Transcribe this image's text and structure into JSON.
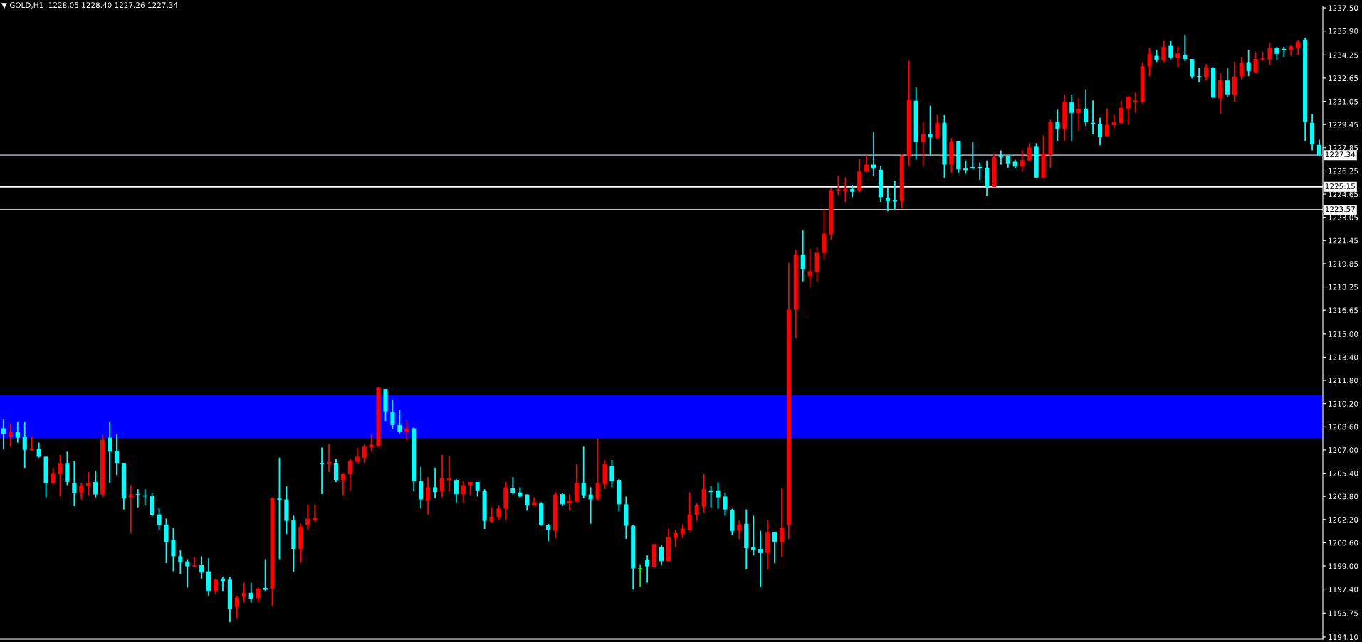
{
  "chart_data": {
    "type": "candlestick",
    "title": "▼ GOLD,H1  1228.05 1228.40 1227.26 1227.34",
    "categories": [
      null,
      null,
      null,
      null,
      null,
      null,
      null,
      null,
      null,
      null,
      null,
      null,
      null,
      null,
      null,
      null,
      null,
      null,
      null,
      null,
      null,
      null,
      null,
      null,
      null,
      null,
      null,
      null,
      null,
      null,
      null,
      null,
      null,
      null,
      null,
      null,
      null,
      null,
      null,
      null,
      null,
      null,
      null,
      null,
      null,
      null,
      null,
      null,
      null,
      null,
      null,
      null,
      null,
      null,
      null,
      null,
      null,
      null,
      null,
      null,
      null,
      null,
      null,
      null,
      null,
      null,
      null,
      null,
      null,
      null,
      null,
      null,
      null,
      null,
      null,
      null,
      null,
      null,
      null,
      null,
      null,
      null,
      null,
      null,
      null,
      null,
      null,
      null,
      null,
      null,
      null,
      null,
      null,
      null,
      null,
      null,
      null,
      null,
      null,
      null,
      null,
      null,
      null,
      null,
      null,
      null,
      null,
      null,
      null,
      null,
      null,
      null,
      null,
      null,
      null,
      null,
      null,
      null,
      null,
      null,
      null,
      null,
      null,
      null,
      null,
      null,
      null,
      null,
      null,
      null,
      null,
      null,
      null,
      null,
      null,
      null,
      null,
      null,
      null,
      null,
      null,
      null,
      null,
      null,
      null,
      null,
      null,
      null,
      null,
      null,
      null,
      null,
      null,
      null,
      null,
      null,
      null,
      null,
      null,
      null,
      null,
      null,
      null,
      null,
      null,
      null,
      null,
      null,
      null,
      null,
      null,
      null,
      null,
      null,
      null,
      null,
      null,
      null,
      null,
      null,
      null,
      null,
      null,
      null,
      null,
      null,
      null
    ],
    "ohlc": [
      [
        1208.49,
        1209.11,
        1207.03,
        1208.13
      ],
      [
        1207.93,
        1208.83,
        1207.23,
        1208.27
      ],
      [
        1208.27,
        1208.91,
        1207.51,
        1207.85
      ],
      [
        1207.93,
        1208.91,
        1205.77,
        1207.01
      ],
      [
        1206.98,
        1207.93,
        1206.95,
        1207.09
      ],
      [
        1207.09,
        1207.51,
        1206.47,
        1206.53
      ],
      [
        1206.53,
        1206.59,
        1203.73,
        1204.71
      ],
      [
        1204.71,
        1205.77,
        1204.63,
        1205.41
      ],
      [
        1205.35,
        1206.67,
        1203.81,
        1206.11
      ],
      [
        1206.11,
        1206.89,
        1204.57,
        1204.79
      ],
      [
        1204.71,
        1206.25,
        1203.11,
        1204.01
      ],
      [
        1204.07,
        1204.71,
        1203.59,
        1204.51
      ],
      [
        1204.51,
        1205.47,
        1203.87,
        1204.71
      ],
      [
        1204.79,
        1205.55,
        1203.73,
        1203.93
      ],
      [
        1203.93,
        1208.07,
        1203.73,
        1207.71
      ],
      [
        1207.85,
        1208.91,
        1204.71,
        1206.89
      ],
      [
        1206.95,
        1208.07,
        1205.27,
        1206.11
      ],
      [
        1206.11,
        1206.11,
        1202.89,
        1203.65
      ],
      [
        1203.73,
        1204.57,
        1201.29,
        1203.93
      ],
      [
        1203.95,
        1204.29,
        1203.03,
        1203.9
      ],
      [
        1203.87,
        1204.29,
        1203.17,
        1203.79
      ],
      [
        1203.81,
        1204.01,
        1202.41,
        1202.53
      ],
      [
        1202.55,
        1202.97,
        1201.49,
        1201.83
      ],
      [
        1201.85,
        1202.27,
        1199.19,
        1200.65
      ],
      [
        1200.79,
        1201.63,
        1198.63,
        1199.67
      ],
      [
        1199.67,
        1200.09,
        1198.41,
        1199.25
      ],
      [
        1199.31,
        1199.47,
        1197.51,
        1198.97
      ],
      [
        1198.97,
        1199.59,
        1198.91,
        1199.05
      ],
      [
        1199.05,
        1199.67,
        1198.13,
        1198.55
      ],
      [
        1198.63,
        1199.53,
        1196.95,
        1197.29
      ],
      [
        1197.29,
        1198.13,
        1197.07,
        1198.05
      ],
      [
        1198.13,
        1198.27,
        1197.29,
        1197.96
      ],
      [
        1198.05,
        1198.27,
        1195.13,
        1196.03
      ],
      [
        1196.17,
        1196.93,
        1195.41,
        1196.81
      ],
      [
        1196.87,
        1197.85,
        1196.51,
        1197.15
      ],
      [
        1197.15,
        1197.85,
        1196.45,
        1196.73
      ],
      [
        1196.79,
        1197.51,
        1196.51,
        1197.43
      ],
      [
        1197.49,
        1199.47,
        1197.29,
        1197.35
      ],
      [
        1197.43,
        1203.73,
        1196.23,
        1203.67
      ],
      [
        1203.65,
        1206.47,
        1199.47,
        1203.56
      ],
      [
        1203.59,
        1204.49,
        1201.21,
        1202.11
      ],
      [
        1202.19,
        1202.47,
        1198.61,
        1200.17
      ],
      [
        1200.17,
        1201.91,
        1199.25,
        1201.71
      ],
      [
        1201.83,
        1203.23,
        1201.49,
        1202.27
      ],
      [
        1202.16,
        1203.23,
        1202.05,
        1202.33
      ],
      [
        1206.11,
        1207.17,
        1203.95,
        1206.03
      ],
      [
        1206.03,
        1207.43,
        1205.47,
        1206.17
      ],
      [
        1206.11,
        1206.39,
        1204.79,
        1204.93
      ],
      [
        1204.93,
        1205.41,
        1203.87,
        1205.35
      ],
      [
        1205.35,
        1206.39,
        1204.23,
        1206.25
      ],
      [
        1206.19,
        1207.15,
        1206.11,
        1206.53
      ],
      [
        1206.45,
        1207.37,
        1206.11,
        1207.23
      ],
      [
        1207.17,
        1208.07,
        1206.89,
        1207.37
      ],
      [
        1207.29,
        1211.37,
        1207.17,
        1211.29
      ],
      [
        1211.21,
        1211.21,
        1208.99,
        1209.67
      ],
      [
        1209.61,
        1210.45,
        1208.43,
        1208.71
      ],
      [
        1208.71,
        1209.75,
        1208.15,
        1208.27
      ],
      [
        1208.27,
        1209.05,
        1207.65,
        1208.49
      ],
      [
        1208.49,
        1208.55,
        1204.15,
        1204.85
      ],
      [
        1204.85,
        1205.83,
        1202.97,
        1203.59
      ],
      [
        1203.53,
        1205.13,
        1202.55,
        1204.43
      ],
      [
        1204.43,
        1205.77,
        1203.67,
        1204.09
      ],
      [
        1204.15,
        1206.67,
        1203.73,
        1205.05
      ],
      [
        1204.93,
        1206.59,
        1204.15,
        1205.05
      ],
      [
        1204.93,
        1204.99,
        1203.39,
        1203.95
      ],
      [
        1203.95,
        1204.85,
        1203.39,
        1204.57
      ],
      [
        1204.57,
        1204.79,
        1203.87,
        1204.79
      ],
      [
        1204.79,
        1204.79,
        1203.79,
        1204.21
      ],
      [
        1204.15,
        1204.29,
        1201.55,
        1202.11
      ],
      [
        1202.05,
        1203.03,
        1201.97,
        1202.39
      ],
      [
        1202.39,
        1203.17,
        1202.19,
        1202.95
      ],
      [
        1202.95,
        1204.79,
        1202.19,
        1204.43
      ],
      [
        1204.35,
        1205.13,
        1203.95,
        1204.01
      ],
      [
        1204.07,
        1204.43,
        1203.73,
        1203.79
      ],
      [
        1203.93,
        1203.93,
        1202.81,
        1203.17
      ],
      [
        1203.17,
        1203.73,
        1203.17,
        1203.39
      ],
      [
        1203.31,
        1203.39,
        1201.77,
        1201.83
      ],
      [
        1201.83,
        1201.91,
        1200.71,
        1201.49
      ],
      [
        1201.43,
        1204.09,
        1200.93,
        1203.93
      ],
      [
        1203.95,
        1204.01,
        1203.11,
        1203.25
      ],
      [
        1203.31,
        1203.93,
        1202.81,
        1203.51
      ],
      [
        1203.45,
        1206.05,
        1203.39,
        1204.71
      ],
      [
        1204.71,
        1207.23,
        1203.67,
        1203.87
      ],
      [
        1203.93,
        1204.43,
        1201.91,
        1203.59
      ],
      [
        1203.59,
        1207.79,
        1203.53,
        1204.71
      ],
      [
        1204.65,
        1206.31,
        1204.29,
        1206.03
      ],
      [
        1205.89,
        1206.31,
        1204.43,
        1204.85
      ],
      [
        1204.93,
        1204.99,
        1202.75,
        1203.25
      ],
      [
        1203.25,
        1203.79,
        1200.87,
        1201.77
      ],
      [
        1201.77,
        1201.83,
        1197.37,
        1198.83
      ],
      [
        1198.8,
        1199.11,
        1197.57,
        1198.8
      ],
      [
        1199.45,
        1199.73,
        1197.85,
        1198.97
      ],
      [
        1198.91,
        1200.51,
        1198.91,
        1200.51
      ],
      [
        1200.31,
        1200.45,
        1199.05,
        1199.33
      ],
      [
        1199.33,
        1201.55,
        1199.33,
        1200.99
      ],
      [
        1200.93,
        1201.49,
        1200.31,
        1201.27
      ],
      [
        1201.21,
        1201.85,
        1200.93,
        1201.57
      ],
      [
        1201.49,
        1204.07,
        1201.43,
        1202.53
      ],
      [
        1202.53,
        1203.31,
        1202.11,
        1203.17
      ],
      [
        1203.09,
        1205.35,
        1202.69,
        1204.29
      ],
      [
        1204.21,
        1204.51,
        1203.03,
        1204.09
      ],
      [
        1204.21,
        1204.77,
        1202.95,
        1203.73
      ],
      [
        1203.79,
        1204.07,
        1202.47,
        1202.89
      ],
      [
        1202.83,
        1202.95,
        1201.15,
        1201.41
      ],
      [
        1201.43,
        1202.13,
        1200.85,
        1201.85
      ],
      [
        1201.91,
        1202.89,
        1198.77,
        1200.23
      ],
      [
        1200.29,
        1202.47,
        1199.73,
        1200.09
      ],
      [
        1200.17,
        1201.43,
        1197.57,
        1199.89
      ],
      [
        1199.89,
        1202.19,
        1198.75,
        1201.35
      ],
      [
        1201.35,
        1201.35,
        1199.19,
        1200.65
      ],
      [
        1200.65,
        1204.35,
        1199.59,
        1201.63
      ],
      [
        1201.83,
        1219.89,
        1200.87,
        1216.67
      ],
      [
        1216.67,
        1220.81,
        1214.71,
        1220.47
      ],
      [
        1220.47,
        1222.15,
        1218.63,
        1219.47
      ],
      [
        1218.99,
        1220.87,
        1218.21,
        1219.33
      ],
      [
        1219.3,
        1220.95,
        1218.63,
        1220.61
      ],
      [
        1220.59,
        1223.61,
        1220.17,
        1221.93
      ],
      [
        1221.87,
        1225.07,
        1221.51,
        1224.93
      ],
      [
        1224.9,
        1225.91,
        1224.59,
        1224.98
      ],
      [
        1224.87,
        1225.79,
        1224.11,
        1225.01
      ],
      [
        1225.01,
        1225.29,
        1224.45,
        1224.81
      ],
      [
        1224.87,
        1227.05,
        1224.79,
        1226.21
      ],
      [
        1226.19,
        1227.33,
        1226.19,
        1226.69
      ],
      [
        1226.69,
        1228.93,
        1225.91,
        1226.41
      ],
      [
        1226.33,
        1226.61,
        1224.11,
        1224.45
      ],
      [
        1224.39,
        1225.07,
        1223.47,
        1224.17
      ],
      [
        1224.25,
        1225.57,
        1223.55,
        1224.14
      ],
      [
        1224.17,
        1227.45,
        1223.69,
        1227.25
      ],
      [
        1227.25,
        1233.83,
        1226.61,
        1231.17
      ],
      [
        1231.09,
        1232.01,
        1227.03,
        1228.23
      ],
      [
        1228.23,
        1229.63,
        1226.61,
        1228.79
      ],
      [
        1228.79,
        1230.75,
        1227.33,
        1228.57
      ],
      [
        1228.51,
        1230.11,
        1228.45,
        1229.57
      ],
      [
        1229.57,
        1230.11,
        1225.77,
        1226.69
      ],
      [
        1226.69,
        1228.51,
        1226.13,
        1228.23
      ],
      [
        1228.29,
        1228.31,
        1226.13,
        1226.35
      ],
      [
        1226.41,
        1226.97,
        1226.05,
        1226.3
      ],
      [
        1226.52,
        1228.23,
        1226.41,
        1226.41
      ],
      [
        1226.52,
        1226.83,
        1225.63,
        1226.44
      ],
      [
        1226.47,
        1226.97,
        1224.51,
        1225.15
      ],
      [
        1225.15,
        1227.47,
        1225.15,
        1227.19
      ],
      [
        1227.25,
        1227.67,
        1226.69,
        1227.19
      ],
      [
        1227.31,
        1227.33,
        1226.47,
        1226.77
      ],
      [
        1226.89,
        1227.03,
        1226.41,
        1226.55
      ],
      [
        1226.55,
        1227.67,
        1226.19,
        1227.0
      ],
      [
        1226.97,
        1228.15,
        1226.91,
        1227.87
      ],
      [
        1227.92,
        1228.17,
        1225.77,
        1225.79
      ],
      [
        1225.77,
        1228.71,
        1225.77,
        1227.45
      ],
      [
        1227.36,
        1229.77,
        1226.47,
        1229.63
      ],
      [
        1229.63,
        1230.47,
        1228.31,
        1229.15
      ],
      [
        1229.15,
        1231.51,
        1228.31,
        1231.03
      ],
      [
        1230.97,
        1231.51,
        1228.31,
        1230.25
      ],
      [
        1230.25,
        1231.31,
        1229.01,
        1230.53
      ],
      [
        1230.55,
        1231.87,
        1229.35,
        1229.63
      ],
      [
        1229.57,
        1231.11,
        1228.79,
        1229.49
      ],
      [
        1229.49,
        1229.91,
        1228.03,
        1228.59
      ],
      [
        1228.65,
        1230.55,
        1228.65,
        1229.43
      ],
      [
        1229.41,
        1230.13,
        1229.21,
        1229.63
      ],
      [
        1229.55,
        1231.11,
        1229.55,
        1230.61
      ],
      [
        1230.55,
        1231.39,
        1229.43,
        1231.39
      ],
      [
        1230.97,
        1231.65,
        1230.27,
        1231.11
      ],
      [
        1231.03,
        1233.75,
        1230.89,
        1233.47
      ],
      [
        1233.47,
        1234.75,
        1232.79,
        1234.31
      ],
      [
        1234.19,
        1234.59,
        1233.77,
        1233.91
      ],
      [
        1233.89,
        1235.23,
        1233.77,
        1234.81
      ],
      [
        1234.92,
        1235.23,
        1233.97,
        1234.08
      ],
      [
        1234.05,
        1234.81,
        1233.41,
        1234.36
      ],
      [
        1234.25,
        1235.65,
        1233.83,
        1233.97
      ],
      [
        1233.97,
        1233.97,
        1232.63,
        1232.77
      ],
      [
        1232.79,
        1233.35,
        1232.37,
        1232.71
      ],
      [
        1232.71,
        1233.61,
        1232.51,
        1233.41
      ],
      [
        1233.35,
        1233.41,
        1231.28,
        1231.31
      ],
      [
        1231.25,
        1232.99,
        1230.19,
        1232.51
      ],
      [
        1232.49,
        1233.33,
        1231.37,
        1231.53
      ],
      [
        1231.51,
        1233.77,
        1231.03,
        1232.77
      ],
      [
        1232.77,
        1234.11,
        1232.57,
        1233.69
      ],
      [
        1233.75,
        1234.59,
        1232.79,
        1233.13
      ],
      [
        1233.07,
        1234.45,
        1232.99,
        1233.97
      ],
      [
        1233.94,
        1234.47,
        1233.83,
        1234.03
      ],
      [
        1233.94,
        1235.09,
        1233.55,
        1234.73
      ],
      [
        1234.73,
        1234.81,
        1233.91,
        1234.31
      ],
      [
        1234.67,
        1234.81,
        1234.11,
        1234.59
      ],
      [
        1234.59,
        1234.95,
        1234.19,
        1234.84
      ],
      [
        1234.73,
        1235.29,
        1234.25,
        1235.17
      ],
      [
        1235.31,
        1235.43,
        1228.31,
        1229.63
      ],
      [
        1229.57,
        1230.19,
        1227.67,
        1228.09
      ],
      [
        1228.05,
        1228.4,
        1227.26,
        1227.34
      ]
    ],
    "colors": [
      "#00ffff",
      "#ff0000",
      "#00ffff",
      "#00ffff",
      "#ff0000",
      "#00ffff",
      "#00ffff",
      "#ff0000",
      "#ff0000",
      "#00ffff",
      "#00ffff",
      "#ff0000",
      "#ff0000",
      "#00ffff",
      "#ff0000",
      "#00ffff",
      "#00ffff",
      "#00ffff",
      "#ff0000",
      "#00ffff",
      "#00ffff",
      "#00ffff",
      "#00ffff",
      "#00ffff",
      "#00ffff",
      "#00ffff",
      "#00ffff",
      "#ff0000",
      "#00ffff",
      "#00ffff",
      "#ff0000",
      "#00ffff",
      "#00ffff",
      "#ff0000",
      "#ff0000",
      "#00ffff",
      "#ff0000",
      "#00ffff",
      "#ff0000",
      "#00ffff",
      "#00ffff",
      "#00ffff",
      "#ff0000",
      "#ff0000",
      "#ff0000",
      "#00ffff",
      "#ff0000",
      "#00ffff",
      "#ff0000",
      "#ff0000",
      "#ff0000",
      "#ff0000",
      "#ff0000",
      "#ff0000",
      "#00ffff",
      "#00ffff",
      "#00ffff",
      "#ff0000",
      "#00ffff",
      "#00ffff",
      "#ff0000",
      "#00ffff",
      "#ff0000",
      "#ff0000",
      "#00ffff",
      "#ff0000",
      "#ff0000",
      "#00ffff",
      "#00ffff",
      "#ff0000",
      "#ff0000",
      "#ff0000",
      "#00ffff",
      "#00ffff",
      "#00ffff",
      "#ff0000",
      "#00ffff",
      "#00ffff",
      "#ff0000",
      "#00ffff",
      "#ff0000",
      "#ff0000",
      "#00ffff",
      "#00ffff",
      "#ff0000",
      "#ff0000",
      "#00ffff",
      "#00ffff",
      "#00ffff",
      "#00ffff",
      "#00ff00",
      "#00ffff",
      "#ff0000",
      "#00ffff",
      "#ff0000",
      "#ff0000",
      "#ff0000",
      "#ff0000",
      "#ff0000",
      "#ff0000",
      "#00ffff",
      "#00ffff",
      "#00ffff",
      "#00ffff",
      "#ff0000",
      "#00ffff",
      "#00ffff",
      "#00ffff",
      "#ff0000",
      "#00ffff",
      "#ff0000",
      "#ff0000",
      "#ff0000",
      "#00ffff",
      "#ff0000",
      "#ff0000",
      "#ff0000",
      "#ff0000",
      "#ff0000",
      "#ff0000",
      "#00ffff",
      "#ff0000",
      "#ff0000",
      "#00ffff",
      "#00ffff",
      "#00ffff",
      "#00ffff",
      "#ff0000",
      "#ff0000",
      "#00ffff",
      "#ff0000",
      "#00ffff",
      "#ff0000",
      "#00ffff",
      "#ff0000",
      "#00ffff",
      "#00ffff",
      "#00ffff",
      "#00ffff",
      "#00ffff",
      "#ff0000",
      "#00ffff",
      "#00ffff",
      "#00ffff",
      "#ff0000",
      "#ff0000",
      "#00ffff",
      "#ff0000",
      "#ff0000",
      "#00ffff",
      "#ff0000",
      "#00ffff",
      "#ff0000",
      "#00ffff",
      "#00ffff",
      "#00ffff",
      "#ff0000",
      "#ff0000",
      "#ff0000",
      "#ff0000",
      "#ff0000",
      "#ff0000",
      "#ff0000",
      "#00ffff",
      "#ff0000",
      "#00ffff",
      "#ff0000",
      "#00ffff",
      "#00ffff",
      "#00ffff",
      "#ff0000",
      "#00ffff",
      "#ff0000",
      "#00ffff",
      "#ff0000",
      "#ff0000",
      "#00ffff",
      "#ff0000",
      "#ff0000",
      "#ff0000",
      "#00ffff",
      "#00ffff",
      "#ff0000",
      "#ff0000",
      "#00ffff",
      "#00ffff",
      "#00ffff"
    ],
    "ylim": [
      1193.95,
      1237.6
    ],
    "yticks": [
      {
        "value": 1237.5,
        "label": "1237.50"
      },
      {
        "value": 1235.9,
        "label": "1235.90"
      },
      {
        "value": 1234.25,
        "label": "1234.25"
      },
      {
        "value": 1232.65,
        "label": "1232.65"
      },
      {
        "value": 1231.05,
        "label": "1231.05"
      },
      {
        "value": 1229.45,
        "label": "1229.45"
      },
      {
        "value": 1227.85,
        "label": "1227.85"
      },
      {
        "value": 1226.25,
        "label": "1226.25"
      },
      {
        "value": 1224.65,
        "label": "1224.65"
      },
      {
        "value": 1223.05,
        "label": "1223.05"
      },
      {
        "value": 1221.45,
        "label": "1221.45"
      },
      {
        "value": 1219.85,
        "label": "1219.85"
      },
      {
        "value": 1218.25,
        "label": "1218.25"
      },
      {
        "value": 1216.65,
        "label": "1216.65"
      },
      {
        "value": 1215.0,
        "label": "1215.00"
      },
      {
        "value": 1213.4,
        "label": "1213.40"
      },
      {
        "value": 1211.8,
        "label": "1211.80"
      },
      {
        "value": 1210.2,
        "label": "1210.20"
      },
      {
        "value": 1208.6,
        "label": "1208.60"
      },
      {
        "value": 1207.0,
        "label": "1207.00"
      },
      {
        "value": 1205.4,
        "label": "1205.40"
      },
      {
        "value": 1203.8,
        "label": "1203.80"
      },
      {
        "value": 1202.2,
        "label": "1202.20"
      },
      {
        "value": 1200.6,
        "label": "1200.60"
      },
      {
        "value": 1199.0,
        "label": "1199.00"
      },
      {
        "value": 1197.4,
        "label": "1197.40"
      },
      {
        "value": 1195.75,
        "label": "1195.75"
      },
      {
        "value": 1194.1,
        "label": "1194.10"
      }
    ],
    "ref_lines": [
      {
        "axis": "y",
        "value": 1227.34,
        "label": "1227.34",
        "color": "#8899aa"
      },
      {
        "axis": "y",
        "value": 1225.15,
        "label": "1225.15",
        "color": "#ffffff"
      },
      {
        "axis": "y",
        "value": 1223.57,
        "label": "1223.57",
        "color": "#ffffff"
      }
    ],
    "bands": [
      {
        "axis": "y",
        "from": 1207.8,
        "to": 1210.77,
        "color": "#0000ff"
      }
    ],
    "grid": false
  }
}
